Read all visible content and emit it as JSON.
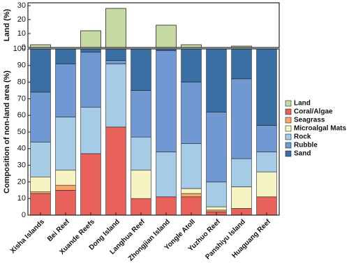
{
  "chart_data": [
    {
      "type": "bar",
      "ylabel": "Land (%)",
      "series": [
        {
          "name": "Land",
          "color": "#c6d9a2",
          "values": [
            2,
            0,
            12,
            28,
            0,
            16,
            2,
            0,
            1,
            0
          ]
        }
      ],
      "ylim": [
        0,
        32
      ],
      "yticks": [
        0,
        10,
        20,
        30
      ]
    },
    {
      "type": "stacked_bar",
      "ylabel": "Composition of non-land area (%)",
      "categories": [
        "Xisha Islands",
        "Bei Reef",
        "Xuande Reefs",
        "Dong Island",
        "Langhua Reef",
        "Zhongjian Island",
        "Yongle Atoll",
        "Yuzhuo Reef",
        "Panshiyu Island",
        "Huaguang Reef"
      ],
      "series": [
        {
          "name": "Coral/Algae",
          "color": "#e8615b",
          "values": [
            13,
            15,
            37,
            53,
            10,
            11,
            11,
            2,
            4,
            11
          ]
        },
        {
          "name": "Seagrass",
          "color": "#f5a76c",
          "values": [
            1,
            3,
            0,
            0,
            0,
            0,
            2,
            1,
            0,
            0
          ]
        },
        {
          "name": "Microalgal Mats",
          "color": "#f6f4c2",
          "values": [
            9,
            9,
            0,
            0,
            17,
            0,
            3,
            2,
            13,
            15
          ]
        },
        {
          "name": "Rock",
          "color": "#a6cbe6",
          "values": [
            21,
            32,
            28,
            38,
            20,
            27,
            27,
            15,
            17,
            12
          ]
        },
        {
          "name": "Rubble",
          "color": "#7098d2",
          "values": [
            30,
            32,
            33,
            2,
            28,
            61,
            37,
            42,
            48,
            16
          ]
        },
        {
          "name": "Sand",
          "color": "#3a6fa3",
          "values": [
            26,
            9,
            2,
            7,
            25,
            1,
            20,
            38,
            18,
            46
          ]
        }
      ],
      "ylim": [
        0,
        100
      ],
      "yticks": [
        0,
        10,
        20,
        30,
        40,
        50,
        60,
        70,
        80,
        90,
        100
      ]
    }
  ]
}
